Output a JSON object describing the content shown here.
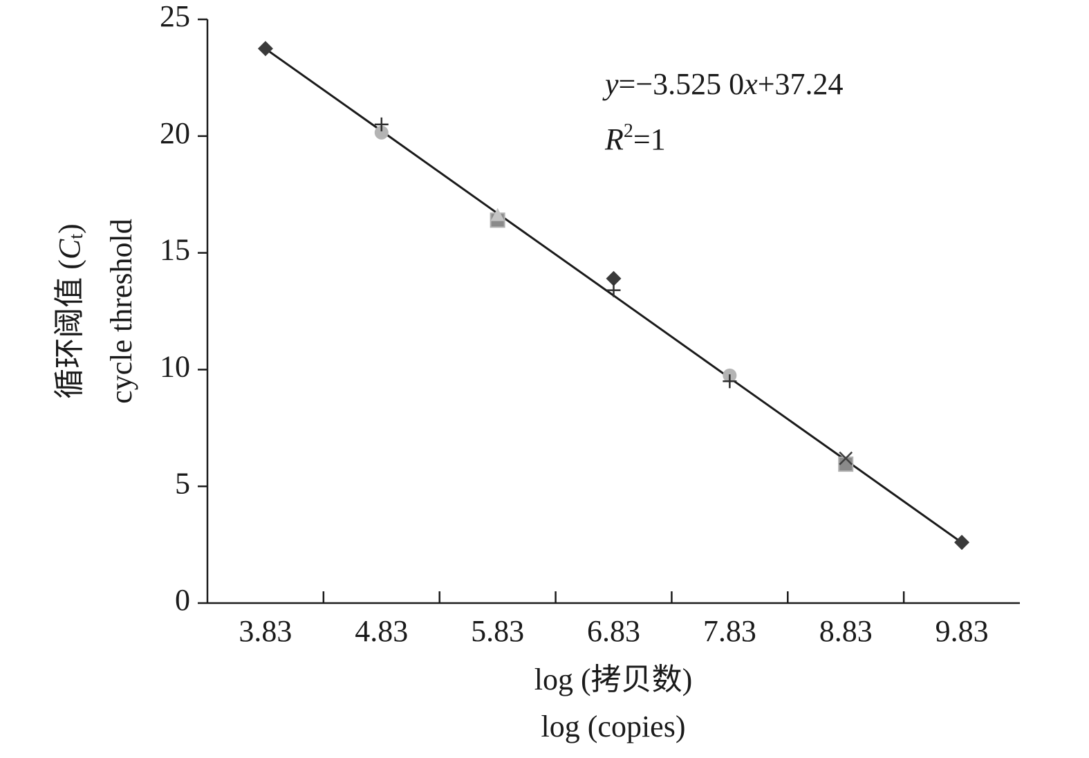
{
  "chart_data": {
    "type": "scatter",
    "categories": [
      "3.83",
      "4.83",
      "5.83",
      "6.83",
      "7.83",
      "8.83",
      "9.83"
    ],
    "x_label": [
      "log (拷贝数)",
      "log (copies)"
    ],
    "y_label": {
      "zh": [
        "循环阈值 (",
        "C",
        "t",
        ")"
      ],
      "en": "cycle threshold"
    },
    "ylim": [
      0,
      25
    ],
    "yticks": [
      0,
      5,
      10,
      15,
      20,
      25
    ],
    "series": [
      {
        "marker": "diamond",
        "color": "#3a3a3a",
        "values": [
          23.75,
          null,
          null,
          13.9,
          null,
          null,
          2.6
        ]
      },
      {
        "marker": "circle",
        "color": "#b4b4b4",
        "values": [
          null,
          20.15,
          null,
          null,
          9.75,
          null,
          null
        ]
      },
      {
        "marker": "plus",
        "color": "#2e2e2e",
        "values": [
          null,
          20.5,
          null,
          13.4,
          9.5,
          null,
          null
        ]
      },
      {
        "marker": "square",
        "color": "#8a8a8a",
        "values": [
          null,
          null,
          16.4,
          null,
          null,
          5.95,
          null
        ]
      },
      {
        "marker": "triangle",
        "color": "#c4c4c4",
        "values": [
          null,
          null,
          16.6,
          null,
          null,
          null,
          null
        ]
      },
      {
        "marker": "cross",
        "color": "#404040",
        "values": [
          null,
          null,
          null,
          null,
          null,
          6.2,
          null
        ]
      }
    ],
    "trendline": {
      "color": "#1a1a1a",
      "values": [
        23.74,
        20.22,
        16.69,
        13.17,
        9.64,
        6.12,
        2.59
      ]
    },
    "equation": [
      "y",
      "=−3.525 0",
      "x",
      "+37.24"
    ],
    "r_squared": [
      "R",
      "2",
      "=1"
    ]
  }
}
